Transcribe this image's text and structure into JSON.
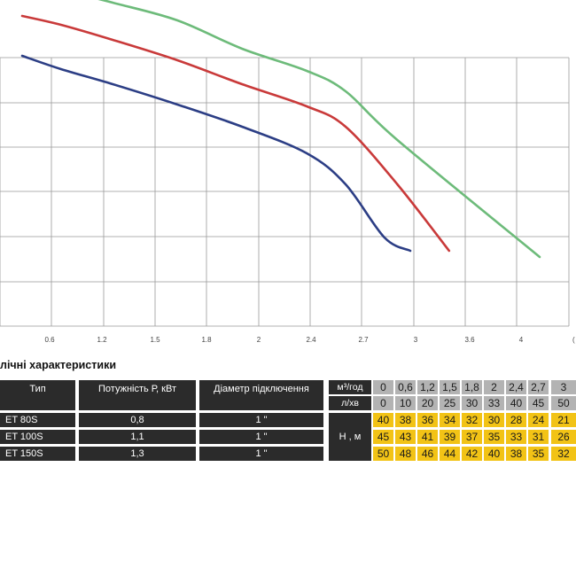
{
  "chart_data": {
    "type": "line",
    "x_ticks": [
      "0.6",
      "1.2",
      "1.5",
      "1.8",
      "2",
      "2.4",
      "2.7",
      "3",
      "3.6",
      "4"
    ],
    "series": [
      {
        "color": "#2c3e85",
        "x": [
          0.3,
          0.6,
          1.0,
          1.5,
          2.0,
          2.5,
          2.8,
          3.1,
          3.3
        ],
        "y": [
          40.5,
          39,
          37.3,
          35,
          32.5,
          29.5,
          26,
          20,
          18.5
        ]
      },
      {
        "color": "#c93a3a",
        "x": [
          0.3,
          0.6,
          1.0,
          1.5,
          2.0,
          2.5,
          2.8,
          3.2,
          3.6
        ],
        "y": [
          45,
          44,
          42.3,
          40,
          37.3,
          34.8,
          32.5,
          26,
          18.5
        ]
      },
      {
        "color": "#6dbb7a",
        "x": [
          0.3,
          0.6,
          1.0,
          1.5,
          2.0,
          2.5,
          2.8,
          3.2,
          4.3
        ],
        "y": [
          49.3,
          48,
          46.5,
          44.5,
          41.3,
          38.8,
          36.5,
          31,
          17.8
        ]
      }
    ]
  },
  "section_title": "лічні характеристики",
  "table": {
    "col_type": "Тип",
    "col_power": "Потужність  Р, кВт",
    "col_diameter": "Діаметр підключення",
    "flow_m3_label": "м³/год",
    "flow_l_label": "л/хв",
    "head_label": "Н , м",
    "flow_m3": [
      "0",
      "0,6",
      "1,2",
      "1,5",
      "1,8",
      "2",
      "2,4",
      "2,7",
      "3"
    ],
    "flow_l": [
      "0",
      "10",
      "20",
      "25",
      "30",
      "33",
      "40",
      "45",
      "50"
    ],
    "rows": [
      {
        "type": "ET  80S",
        "power": "0,8",
        "diameter": "1 \"",
        "heads": [
          "40",
          "38",
          "36",
          "34",
          "32",
          "30",
          "28",
          "24",
          "21"
        ]
      },
      {
        "type": "ET  100S",
        "power": "1,1",
        "diameter": "1 \"",
        "heads": [
          "45",
          "43",
          "41",
          "39",
          "37",
          "35",
          "33",
          "31",
          "26"
        ]
      },
      {
        "type": "ET  150S",
        "power": "1,3",
        "diameter": "1 \"",
        "heads": [
          "50",
          "48",
          "46",
          "44",
          "42",
          "40",
          "38",
          "35",
          "32"
        ]
      }
    ]
  }
}
